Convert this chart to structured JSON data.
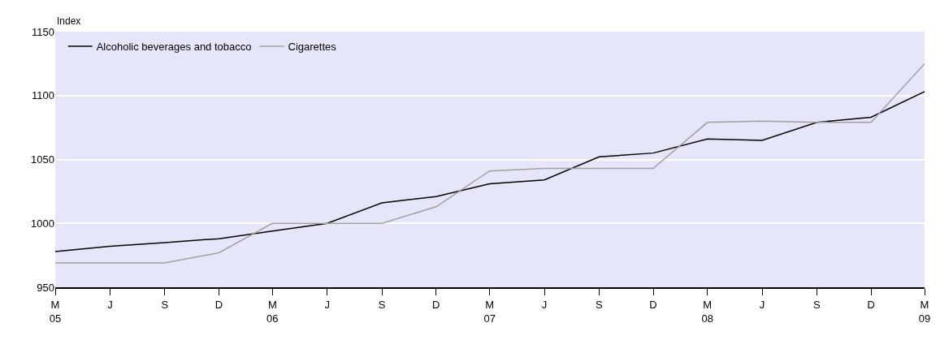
{
  "chart_data": {
    "type": "line",
    "ylabel": "Index",
    "x": [
      "2005-03",
      "2005-06",
      "2005-09",
      "2005-12",
      "2006-03",
      "2006-06",
      "2006-09",
      "2006-12",
      "2007-03",
      "2007-06",
      "2007-09",
      "2007-12",
      "2008-03",
      "2008-06",
      "2008-09",
      "2008-12",
      "2009-03"
    ],
    "series": [
      {
        "name": "Alcoholic beverages and tobacco",
        "color": "#000000",
        "values": [
          978,
          982,
          985,
          988,
          994,
          1000,
          1016,
          1021,
          1031,
          1034,
          1052,
          1055,
          1066,
          1065,
          1079,
          1083,
          1103
        ]
      },
      {
        "name": "Cigarettes",
        "color": "#a0a0a0",
        "values": [
          969,
          969,
          969,
          977,
          1000,
          1000,
          1000,
          1013,
          1041,
          1043,
          1043,
          1043,
          1079,
          1080,
          1079,
          1079,
          1125
        ]
      }
    ],
    "xlim": [
      "2005-03",
      "2009-03"
    ],
    "xticks": [
      {
        "value": "2005-03",
        "label": "M\n05"
      },
      {
        "value": "2005-06",
        "label": "J"
      },
      {
        "value": "2005-09",
        "label": "S"
      },
      {
        "value": "2005-12",
        "label": "D"
      },
      {
        "value": "2006-03",
        "label": "M\n06"
      },
      {
        "value": "2006-06",
        "label": "J"
      },
      {
        "value": "2006-09",
        "label": "S"
      },
      {
        "value": "2006-12",
        "label": "D"
      },
      {
        "value": "2007-03",
        "label": "M\n07"
      },
      {
        "value": "2007-06",
        "label": "J"
      },
      {
        "value": "2007-09",
        "label": "S"
      },
      {
        "value": "2007-12",
        "label": "D"
      },
      {
        "value": "2008-03",
        "label": "M\n08"
      },
      {
        "value": "2008-06",
        "label": "J"
      },
      {
        "value": "2008-09",
        "label": "S"
      },
      {
        "value": "2008-12",
        "label": "D"
      },
      {
        "value": "2009-03",
        "label": "M\n09"
      }
    ],
    "ylim": [
      950,
      1150
    ],
    "yticks": [
      950,
      1000,
      1050,
      1100,
      1150
    ],
    "grid": "y",
    "legend": "top left",
    "marker": "none",
    "line_style": "solid"
  }
}
